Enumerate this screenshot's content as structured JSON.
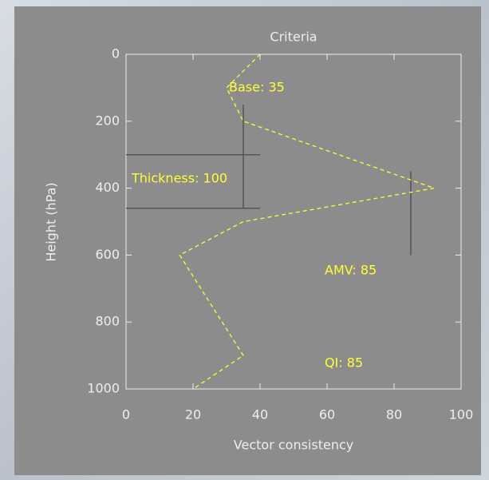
{
  "chart_data": {
    "type": "line",
    "title": "Criteria",
    "x_label": "Vector consistency",
    "y_label": "Height (hPa)",
    "series": [
      {
        "color": "#ffff33",
        "x": [
          40,
          30,
          35,
          92,
          35,
          16,
          35,
          20
        ],
        "values": [
          0,
          100,
          200,
          400,
          500,
          600,
          900,
          1000
        ]
      }
    ],
    "xlim": [
      0,
      100
    ],
    "xticks": [
      0,
      20,
      40,
      60,
      80,
      100
    ],
    "ylim": [
      1000,
      0
    ],
    "yticks": [
      0,
      200,
      400,
      600,
      800,
      1000
    ],
    "lines": [
      {
        "x": [
          35,
          35
        ],
        "y": [
          150,
          460
        ]
      },
      {
        "x": [
          0,
          40
        ],
        "y": [
          300,
          300
        ]
      },
      {
        "x": [
          0,
          40
        ],
        "y": [
          460,
          460
        ]
      },
      {
        "x": [
          85,
          85
        ],
        "y": [
          350,
          600
        ]
      }
    ],
    "line_color": "#555555",
    "annotations": [
      "Base: 35",
      "Thickness: 100",
      "AMV: 85",
      "QI: 85"
    ],
    "annotation_color": "#ffff33"
  }
}
